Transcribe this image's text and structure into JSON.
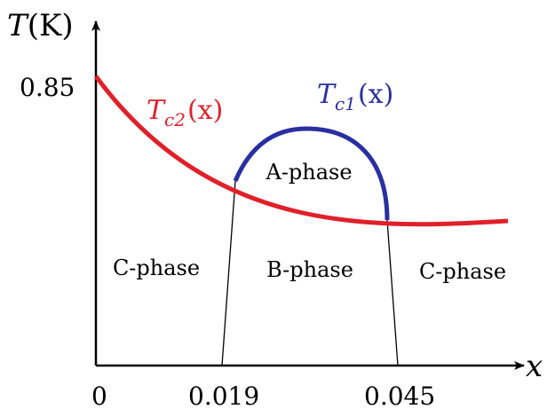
{
  "axes": {
    "y_label": {
      "var": "T",
      "unit": "(K)"
    },
    "x_label": "x",
    "y_tick": "0.85",
    "x_ticks": [
      "0",
      "0.019",
      "0.045"
    ]
  },
  "curves": {
    "tc2": {
      "symbol": "T",
      "sub": "c2",
      "arg": "(x)",
      "color": "#e0202a"
    },
    "tc1": {
      "symbol": "T",
      "sub": "c1",
      "arg": "(x)",
      "color": "#2a2fa0"
    }
  },
  "regions": {
    "c_left": "C-phase",
    "a_phase": "A-phase",
    "b_phase": "B-phase",
    "c_right": "C-phase"
  }
}
